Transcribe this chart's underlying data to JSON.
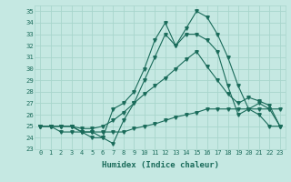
{
  "xlabel": "Humidex (Indice chaleur)",
  "xlim": [
    -0.5,
    23.5
  ],
  "ylim": [
    23,
    35.5
  ],
  "yticks": [
    23,
    24,
    25,
    26,
    27,
    28,
    29,
    30,
    31,
    32,
    33,
    34,
    35
  ],
  "xticks": [
    0,
    1,
    2,
    3,
    4,
    5,
    6,
    7,
    8,
    9,
    10,
    11,
    12,
    13,
    14,
    15,
    16,
    17,
    18,
    19,
    20,
    21,
    22,
    23
  ],
  "bg_color": "#c5e8e2",
  "grid_color": "#a8d5cc",
  "line_color": "#1a6b5a",
  "lines": [
    [
      25.0,
      25.0,
      25.0,
      25.0,
      24.5,
      24.5,
      24.0,
      23.5,
      25.5,
      27.0,
      29.0,
      31.0,
      33.0,
      32.0,
      33.5,
      35.0,
      34.5,
      33.0,
      31.0,
      28.5,
      26.5,
      27.0,
      26.5,
      26.5
    ],
    [
      25.0,
      25.0,
      25.0,
      25.0,
      24.5,
      24.0,
      24.0,
      26.5,
      27.0,
      28.0,
      30.0,
      32.5,
      34.0,
      32.0,
      33.0,
      33.0,
      32.5,
      31.5,
      28.5,
      26.0,
      26.5,
      26.0,
      25.0,
      25.0
    ],
    [
      25.0,
      25.0,
      25.0,
      25.0,
      24.8,
      24.8,
      25.0,
      25.5,
      26.2,
      27.0,
      27.8,
      28.5,
      29.2,
      30.0,
      30.8,
      31.5,
      30.2,
      29.0,
      27.8,
      27.0,
      27.5,
      27.2,
      26.8,
      25.0
    ],
    [
      25.0,
      25.0,
      24.5,
      24.5,
      24.5,
      24.5,
      24.5,
      24.5,
      24.5,
      24.8,
      25.0,
      25.2,
      25.5,
      25.8,
      26.0,
      26.2,
      26.5,
      26.5,
      26.5,
      26.5,
      26.5,
      26.5,
      26.5,
      25.0
    ]
  ]
}
